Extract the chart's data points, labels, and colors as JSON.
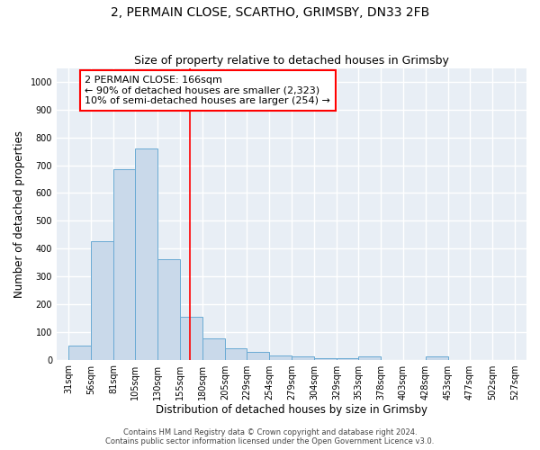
{
  "title": "2, PERMAIN CLOSE, SCARTHO, GRIMSBY, DN33 2FB",
  "subtitle": "Size of property relative to detached houses in Grimsby",
  "xlabel": "Distribution of detached houses by size in Grimsby",
  "ylabel": "Number of detached properties",
  "bar_left_edges": [
    31,
    56,
    81,
    105,
    130,
    155,
    180,
    205,
    229,
    254,
    279,
    304,
    329,
    353,
    378,
    403,
    428,
    453,
    477,
    502
  ],
  "bar_widths": [
    25,
    25,
    24,
    25,
    25,
    25,
    25,
    24,
    25,
    25,
    25,
    25,
    24,
    25,
    25,
    25,
    25,
    24,
    25,
    25
  ],
  "bar_heights": [
    52,
    425,
    685,
    760,
    362,
    155,
    78,
    40,
    27,
    15,
    10,
    5,
    5,
    10,
    0,
    0,
    10,
    0,
    0,
    0
  ],
  "bar_color": "#c9d9ea",
  "bar_edge_color": "#6aaad4",
  "red_line_x": 166,
  "ylim": [
    0,
    1050
  ],
  "yticks": [
    0,
    100,
    200,
    300,
    400,
    500,
    600,
    700,
    800,
    900,
    1000
  ],
  "xtick_labels": [
    "31sqm",
    "56sqm",
    "81sqm",
    "105sqm",
    "130sqm",
    "155sqm",
    "180sqm",
    "205sqm",
    "229sqm",
    "254sqm",
    "279sqm",
    "304sqm",
    "329sqm",
    "353sqm",
    "378sqm",
    "403sqm",
    "428sqm",
    "453sqm",
    "477sqm",
    "502sqm",
    "527sqm"
  ],
  "xtick_positions": [
    31,
    56,
    81,
    105,
    130,
    155,
    180,
    205,
    229,
    254,
    279,
    304,
    329,
    353,
    378,
    403,
    428,
    453,
    477,
    502,
    527
  ],
  "annotation_lines": [
    "2 PERMAIN CLOSE: 166sqm",
    "← 90% of detached houses are smaller (2,323)",
    "10% of semi-detached houses are larger (254) →"
  ],
  "footer_lines": [
    "Contains HM Land Registry data © Crown copyright and database right 2024.",
    "Contains public sector information licensed under the Open Government Licence v3.0."
  ],
  "background_color": "#ffffff",
  "plot_bg_color": "#e8eef5",
  "grid_color": "#ffffff",
  "title_fontsize": 10,
  "subtitle_fontsize": 9,
  "axis_label_fontsize": 8.5,
  "tick_fontsize": 7,
  "annotation_fontsize": 8,
  "footer_fontsize": 6
}
